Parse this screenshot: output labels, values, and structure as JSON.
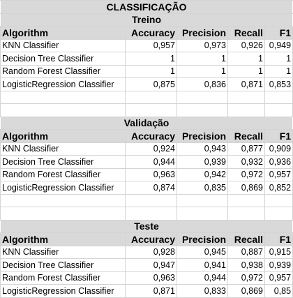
{
  "title": "CLASSIFICAÇÃO",
  "columns": [
    "Algorithm",
    "Accuracy",
    "Precision",
    "Recall",
    "F1"
  ],
  "sections": [
    {
      "name": "Treino",
      "rows": [
        [
          "KNN Classifier",
          "0,957",
          "0,973",
          "0,926",
          "0,949"
        ],
        [
          "Decision Tree Classifier",
          "1",
          "1",
          "1",
          "1"
        ],
        [
          "Random Forest Classifier",
          "1",
          "1",
          "1",
          "1"
        ],
        [
          "LogisticRegression Classifier",
          "0,875",
          "0,836",
          "0,871",
          "0,853"
        ]
      ]
    },
    {
      "name": "Validação",
      "rows": [
        [
          "KNN Classifier",
          "0,924",
          "0,943",
          "0,877",
          "0,909"
        ],
        [
          "Decision Tree Classifier",
          "0,944",
          "0,939",
          "0,932",
          "0,936"
        ],
        [
          "Random Forest Classifier",
          "0,963",
          "0,942",
          "0,972",
          "0,957"
        ],
        [
          "LogisticRegression Classifier",
          "0,874",
          "0,835",
          "0,869",
          "0,852"
        ]
      ]
    },
    {
      "name": "Teste",
      "rows": [
        [
          "KNN Classifier",
          "0,928",
          "0,945",
          "0,887",
          "0,915"
        ],
        [
          "Decision Tree Classifier",
          "0,947",
          "0,941",
          "0,938",
          "0,939"
        ],
        [
          "Random Forest Classifier",
          "0,963",
          "0,944",
          "0,972",
          "0,957"
        ],
        [
          "LogisticRegression Classifier",
          "0,871",
          "0,833",
          "0,869",
          "0,85"
        ]
      ]
    }
  ]
}
